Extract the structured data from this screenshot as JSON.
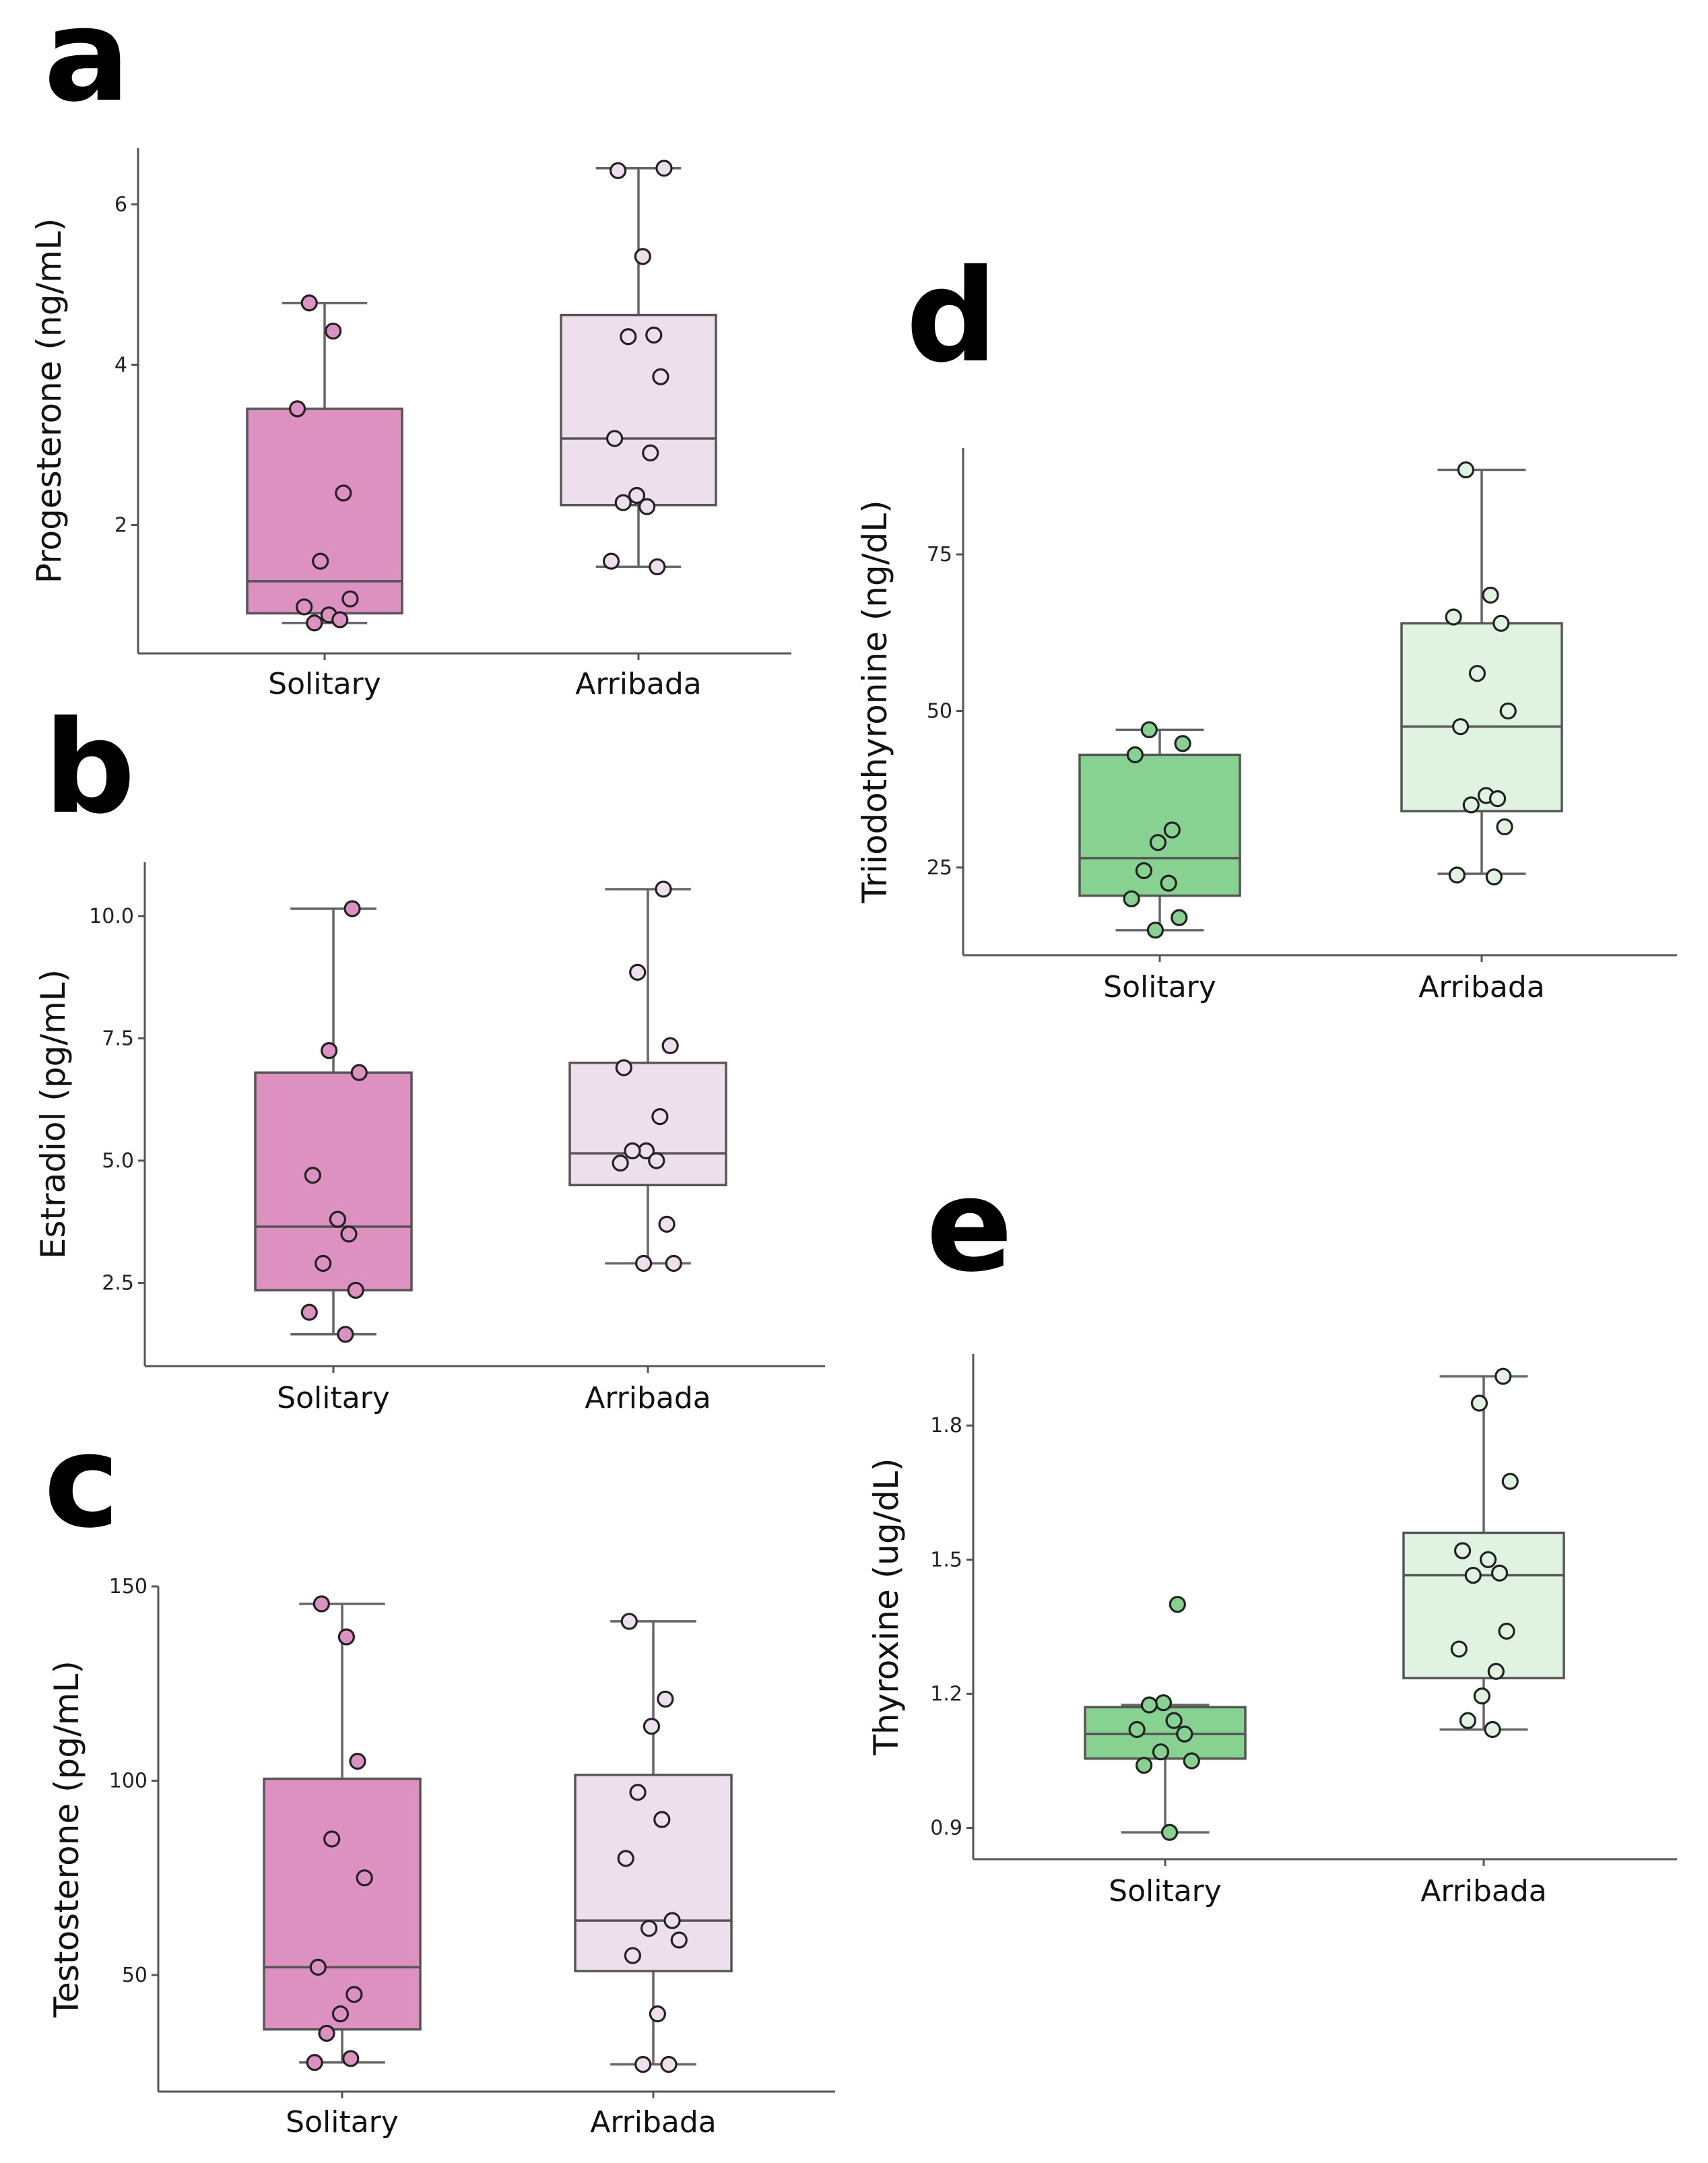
{
  "chart_data": [
    {
      "panel": "a",
      "type": "box",
      "ylabel": "Progesterone (ng/mL)",
      "ylim": [
        0.4,
        6.7
      ],
      "yticks": [
        2,
        4,
        6
      ],
      "categories": [
        "Solitary",
        "Arribada"
      ],
      "colors": [
        "#dc91c1",
        "#eedfec"
      ],
      "groups": [
        {
          "name": "Solitary",
          "q1": 0.9,
          "median": 1.3,
          "q3": 3.45,
          "whisker_low": 0.78,
          "whisker_high": 4.77,
          "points": [
            4.77,
            4.42,
            3.45,
            2.4,
            1.55,
            1.08,
            0.98,
            0.88,
            0.82,
            0.78
          ]
        },
        {
          "name": "Arribada",
          "q1": 2.25,
          "median": 3.08,
          "q3": 4.62,
          "whisker_low": 1.48,
          "whisker_high": 6.45,
          "points": [
            6.45,
            6.42,
            5.35,
            4.37,
            4.35,
            3.85,
            3.08,
            2.9,
            2.37,
            2.28,
            2.23,
            1.55,
            1.48
          ]
        }
      ]
    },
    {
      "panel": "b",
      "type": "box",
      "ylabel": "Estradiol (pg/mL)",
      "ylim": [
        0.8,
        11.1
      ],
      "yticks": [
        2.5,
        5.0,
        7.5,
        10.0
      ],
      "ytick_labels": [
        "2.5",
        "5.0",
        "7.5",
        "10.0"
      ],
      "categories": [
        "Solitary",
        "Arribada"
      ],
      "colors": [
        "#dc91c1",
        "#eedfec"
      ],
      "groups": [
        {
          "name": "Solitary",
          "q1": 2.35,
          "median": 3.65,
          "q3": 6.8,
          "whisker_low": 1.45,
          "whisker_high": 10.15,
          "points": [
            10.15,
            7.25,
            6.8,
            4.7,
            3.8,
            3.5,
            2.9,
            2.35,
            1.9,
            1.45
          ]
        },
        {
          "name": "Arribada",
          "q1": 4.5,
          "median": 5.15,
          "q3": 7.0,
          "whisker_low": 2.9,
          "whisker_high": 10.55,
          "points": [
            10.55,
            8.85,
            7.35,
            6.9,
            5.9,
            5.2,
            5.2,
            5.0,
            4.95,
            3.7,
            2.9,
            2.9
          ]
        }
      ]
    },
    {
      "panel": "c",
      "type": "box",
      "ylabel": "Testosterone (pg/mL)",
      "ylim": [
        20,
        150
      ],
      "yticks": [
        50,
        100,
        150
      ],
      "categories": [
        "Solitary",
        "Arribada"
      ],
      "colors": [
        "#dc91c1",
        "#eedfec"
      ],
      "groups": [
        {
          "name": "Solitary",
          "q1": 36,
          "median": 52,
          "q3": 100.5,
          "whisker_low": 27.5,
          "whisker_high": 145.5,
          "points": [
            145.5,
            137,
            105,
            85,
            75,
            52,
            45,
            40,
            35,
            28.5,
            27.5
          ]
        },
        {
          "name": "Arribada",
          "q1": 51,
          "median": 64,
          "q3": 101.5,
          "whisker_low": 27,
          "whisker_high": 141,
          "points": [
            141,
            121,
            114,
            97,
            90,
            80,
            64,
            62,
            59,
            55,
            40,
            27,
            27
          ]
        }
      ]
    },
    {
      "panel": "d",
      "type": "box",
      "ylabel": "Triiodothyronine (ng/dL)",
      "ylim": [
        11,
        92
      ],
      "yticks": [
        25,
        50,
        75
      ],
      "categories": [
        "Solitary",
        "Arribada"
      ],
      "colors": [
        "#88d291",
        "#e0f3e0"
      ],
      "groups": [
        {
          "name": "Solitary",
          "q1": 20.5,
          "median": 26.5,
          "q3": 43,
          "whisker_low": 15,
          "whisker_high": 47,
          "points": [
            47,
            44.8,
            43,
            31,
            29,
            24.5,
            22.5,
            20,
            17,
            15
          ]
        },
        {
          "name": "Arribada",
          "q1": 34,
          "median": 47.5,
          "q3": 64,
          "whisker_low": 24,
          "whisker_high": 88.5,
          "points": [
            88.5,
            68.5,
            65,
            64,
            56,
            50,
            47.5,
            36.5,
            36,
            35,
            31.5,
            23.8,
            23.5
          ]
        }
      ]
    },
    {
      "panel": "e",
      "type": "box",
      "ylabel": "Thyroxine (ug/dL)",
      "ylim": [
        0.83,
        1.96
      ],
      "yticks": [
        0.9,
        1.2,
        1.5,
        1.8
      ],
      "ytick_labels": [
        "0.9",
        "1.2",
        "1.5",
        "1.8"
      ],
      "categories": [
        "Solitary",
        "Arribada"
      ],
      "colors": [
        "#88d291",
        "#e0f3e0"
      ],
      "groups": [
        {
          "name": "Solitary",
          "q1": 1.055,
          "median": 1.11,
          "q3": 1.17,
          "whisker_low": 0.89,
          "whisker_high": 1.175,
          "points": [
            1.4,
            1.18,
            1.175,
            1.14,
            1.12,
            1.11,
            1.07,
            1.05,
            1.04,
            0.89
          ]
        },
        {
          "name": "Arribada",
          "q1": 1.235,
          "median": 1.465,
          "q3": 1.56,
          "whisker_low": 1.12,
          "whisker_high": 1.91,
          "points": [
            1.91,
            1.85,
            1.675,
            1.52,
            1.5,
            1.47,
            1.465,
            1.34,
            1.3,
            1.25,
            1.195,
            1.14,
            1.12
          ]
        }
      ]
    }
  ]
}
